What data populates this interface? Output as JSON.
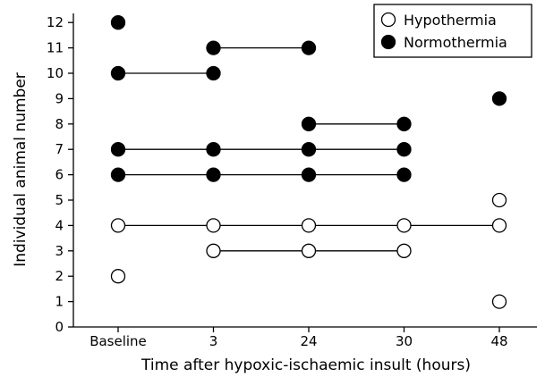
{
  "chart_data": {
    "type": "scatter",
    "title": "",
    "xlabel": "Time after hypoxic-ischaemic insult (hours)",
    "ylabel": "Individual animal number",
    "categories": [
      "Baseline",
      "3",
      "24",
      "30",
      "48"
    ],
    "ylim": [
      0,
      12
    ],
    "yticks": [
      0,
      1,
      2,
      3,
      4,
      5,
      6,
      7,
      8,
      9,
      10,
      11,
      12
    ],
    "grid": false,
    "legend_position": "top-right",
    "series": [
      {
        "name": "Hypothermia",
        "marker": "open-circle",
        "animals": [
          {
            "animal": 1,
            "times": [
              "48"
            ]
          },
          {
            "animal": 2,
            "times": [
              "Baseline"
            ]
          },
          {
            "animal": 3,
            "times": [
              "3",
              "24",
              "30"
            ]
          },
          {
            "animal": 4,
            "times": [
              "Baseline",
              "3",
              "24",
              "30",
              "48"
            ]
          },
          {
            "animal": 5,
            "times": [
              "48"
            ]
          }
        ]
      },
      {
        "name": "Normothermia",
        "marker": "filled-circle",
        "animals": [
          {
            "animal": 6,
            "times": [
              "Baseline",
              "3",
              "24",
              "30"
            ]
          },
          {
            "animal": 7,
            "times": [
              "Baseline",
              "3",
              "24",
              "30"
            ]
          },
          {
            "animal": 8,
            "times": [
              "24",
              "30"
            ]
          },
          {
            "animal": 9,
            "times": [
              "48"
            ]
          },
          {
            "animal": 10,
            "times": [
              "Baseline",
              "3"
            ]
          },
          {
            "animal": 11,
            "times": [
              "3",
              "24"
            ]
          },
          {
            "animal": 12,
            "times": [
              "Baseline"
            ]
          }
        ]
      }
    ]
  }
}
